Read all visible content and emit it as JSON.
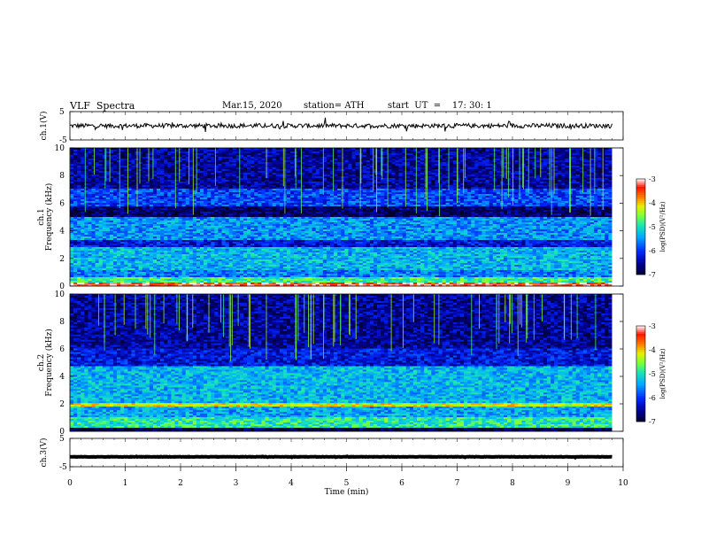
{
  "header": {
    "title": "VLF  Spectra",
    "date": "Mar.15, 2020",
    "station": "station= ATH",
    "start_ut": "start  UT  =    17: 30: 1"
  },
  "colors": {
    "spectrogram_low": "#000050",
    "spectrogram_mid": "#19e6b4",
    "spectrogram_high": "#ff2a00",
    "trace": "#000000"
  },
  "chart_data": [
    {
      "type": "line",
      "panel": "ch1-waveform",
      "ylabel": "ch.1(V)",
      "ylim": [
        -5,
        5
      ],
      "yticks": [
        "5",
        "-5"
      ],
      "xlim": [
        0,
        10
      ],
      "description_values": {
        "mean": 0,
        "typical_peak": 1.5
      }
    },
    {
      "type": "heatmap",
      "panel": "ch1-spectrogram",
      "ylabel": "Frequency (kHz)",
      "channel_label": "ch.1",
      "ylim": [
        0,
        10
      ],
      "yticks": [
        "0",
        "2",
        "4",
        "6",
        "8",
        "10"
      ],
      "xlim": [
        0,
        10
      ],
      "data_end_min": 9.8,
      "colorbar": {
        "label": "log(PSD)(V²/Hz)",
        "range": [
          -7,
          -3
        ],
        "ticks": [
          "-3",
          "-4",
          "-5",
          "-6",
          "-7"
        ]
      },
      "bands_khz": [
        {
          "lo": 0,
          "hi": 0.3,
          "level": -3.3
        },
        {
          "lo": 0.3,
          "hi": 0.6,
          "level": -4.8
        },
        {
          "lo": 0.6,
          "hi": 1.1,
          "level": -5.6
        },
        {
          "lo": 1.1,
          "hi": 2.8,
          "level": -5.3
        },
        {
          "lo": 2.8,
          "hi": 3.3,
          "level": -6.2
        },
        {
          "lo": 3.3,
          "hi": 5.0,
          "level": -5.5
        },
        {
          "lo": 5.0,
          "hi": 5.8,
          "level": -6.7
        },
        {
          "lo": 5.8,
          "hi": 7.0,
          "level": -5.9
        },
        {
          "lo": 7.0,
          "hi": 10.0,
          "level": -6.5
        }
      ]
    },
    {
      "type": "heatmap",
      "panel": "ch2-spectrogram",
      "ylabel": "Frequency (kHz)",
      "channel_label": "ch.2",
      "ylim": [
        0,
        10
      ],
      "yticks": [
        "0",
        "2",
        "4",
        "6",
        "8",
        "10"
      ],
      "xlim": [
        0,
        10
      ],
      "data_end_min": 9.8,
      "colorbar": {
        "label": "log(PSD)(V²/Hz)",
        "range": [
          -7,
          -3
        ],
        "ticks": [
          "-3",
          "-4",
          "-5",
          "-6",
          "-7"
        ]
      },
      "bands_khz": [
        {
          "lo": 0,
          "hi": 0.3,
          "level": -6.8
        },
        {
          "lo": 0.3,
          "hi": 1.0,
          "level": -4.9
        },
        {
          "lo": 1.0,
          "hi": 1.8,
          "level": -5.4
        },
        {
          "lo": 1.8,
          "hi": 2.1,
          "level": -4.2
        },
        {
          "lo": 2.1,
          "hi": 4.8,
          "level": -5.3
        },
        {
          "lo": 4.8,
          "hi": 6.0,
          "level": -6.2
        },
        {
          "lo": 6.0,
          "hi": 10.0,
          "level": -6.5
        }
      ]
    },
    {
      "type": "line",
      "panel": "ch3-waveform",
      "ylabel": "ch.3(V)",
      "ylim": [
        -5,
        5
      ],
      "yticks": [
        "5",
        "-5"
      ],
      "xlim": [
        0,
        10
      ],
      "description_values": {
        "mean": -1.5,
        "typical_peak": 0.1
      }
    }
  ],
  "x_axis": {
    "label": "Time  (min)",
    "ticks": [
      "0",
      "1",
      "2",
      "3",
      "4",
      "5",
      "6",
      "7",
      "8",
      "9",
      "10"
    ]
  }
}
